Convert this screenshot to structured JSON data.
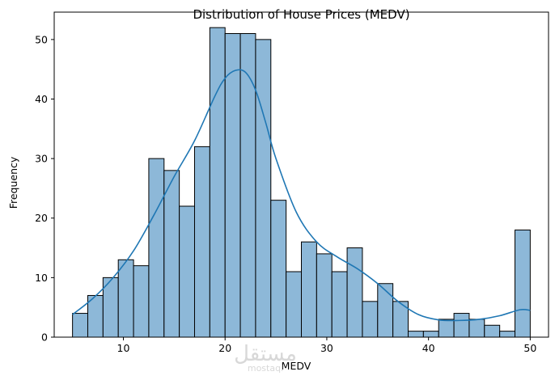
{
  "chart_data": {
    "type": "bar",
    "title": "Distribution of House Prices (MEDV)",
    "xlabel": "MEDV",
    "ylabel": "Frequency",
    "xlim": [
      3.2,
      51.8
    ],
    "ylim": [
      0,
      54.6
    ],
    "xticks": [
      10,
      20,
      30,
      40,
      50
    ],
    "yticks": [
      0,
      10,
      20,
      30,
      40,
      50
    ],
    "grid": false,
    "bar_color": "#8db8d8",
    "bar_edge_color": "#000000",
    "kde_color": "#1f77b4",
    "bins": {
      "start": 5,
      "width": 1.5,
      "counts": [
        4,
        7,
        10,
        13,
        12,
        30,
        28,
        22,
        32,
        52,
        51,
        51,
        50,
        23,
        11,
        16,
        14,
        11,
        15,
        6,
        9,
        6,
        1,
        1,
        3,
        4,
        3,
        2,
        1,
        18
      ]
    },
    "kde": {
      "x": [
        5,
        7,
        9,
        11,
        13,
        15,
        17,
        19,
        20,
        21,
        22,
        23,
        24,
        25,
        27,
        29,
        31,
        33,
        35,
        37,
        39,
        41,
        43,
        45,
        47,
        49,
        50
      ],
      "y": [
        3.8,
        6.5,
        10.0,
        14.5,
        20.5,
        27.0,
        33.0,
        40.5,
        43.5,
        44.8,
        44.5,
        41.5,
        36.0,
        30.0,
        21.0,
        16.0,
        13.5,
        11.5,
        9.0,
        6.0,
        3.8,
        2.9,
        2.8,
        3.0,
        3.6,
        4.6,
        4.5
      ]
    }
  },
  "watermark": {
    "arabic": "مستقل",
    "latin": "mostaql"
  }
}
